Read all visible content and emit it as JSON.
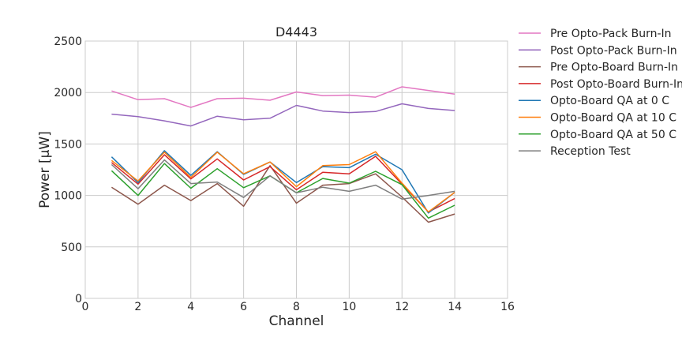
{
  "chart_data": {
    "type": "line",
    "title": "D4443",
    "xlabel": "Channel",
    "ylabel": "Power [μW]",
    "xlim": [
      0,
      16
    ],
    "ylim": [
      0,
      2500
    ],
    "xticks": [
      0,
      2,
      4,
      6,
      8,
      10,
      12,
      14,
      16
    ],
    "yticks": [
      0,
      500,
      1000,
      1500,
      2000,
      2500
    ],
    "grid": true,
    "legend_position": "outside-right",
    "x": [
      1,
      2,
      3,
      4,
      5,
      6,
      7,
      8,
      9,
      10,
      11,
      12,
      13,
      14
    ],
    "series": [
      {
        "name": "Pre Opto-Pack Burn-In",
        "color": "#e377c2",
        "values": [
          2015,
          1930,
          1940,
          1855,
          1940,
          1945,
          1925,
          2005,
          1970,
          1975,
          1955,
          2055,
          2020,
          1985
        ]
      },
      {
        "name": "Post Opto-Pack Burn-In",
        "color": "#9467bd",
        "values": [
          1790,
          1765,
          1725,
          1675,
          1770,
          1735,
          1750,
          1875,
          1820,
          1805,
          1815,
          1890,
          1845,
          1825
        ]
      },
      {
        "name": "Pre Opto-Board Burn-In",
        "color": "#8c564b",
        "values": [
          1080,
          915,
          1100,
          950,
          1115,
          895,
          1290,
          925,
          1100,
          1115,
          1210,
          985,
          740,
          820
        ]
      },
      {
        "name": "Post Opto-Board Burn-In",
        "color": "#d62728",
        "values": [
          1320,
          1110,
          1395,
          1160,
          1355,
          1150,
          1280,
          1055,
          1225,
          1210,
          1380,
          1110,
          840,
          970
        ]
      },
      {
        "name": "Opto-Board QA at 0 C",
        "color": "#1f77b4",
        "values": [
          1375,
          1125,
          1435,
          1195,
          1425,
          1205,
          1325,
          1125,
          1280,
          1270,
          1400,
          1250,
          830,
          1030
        ]
      },
      {
        "name": "Opto-Board QA at 10 C",
        "color": "#ff7f0e",
        "values": [
          1340,
          1140,
          1420,
          1175,
          1420,
          1210,
          1325,
          1085,
          1290,
          1300,
          1425,
          1120,
          840,
          1030
        ]
      },
      {
        "name": "Opto-Board QA at 50 C",
        "color": "#2ca02c",
        "values": [
          1240,
          1000,
          1310,
          1070,
          1260,
          1075,
          1190,
          1025,
          1165,
          1120,
          1235,
          1105,
          780,
          905
        ]
      },
      {
        "name": "Reception Test",
        "color": "#7f7f7f",
        "values": [
          1300,
          1065,
          1345,
          1115,
          1130,
          980,
          1190,
          1025,
          1080,
          1040,
          1100,
          965,
          1000,
          1040
        ]
      }
    ]
  }
}
